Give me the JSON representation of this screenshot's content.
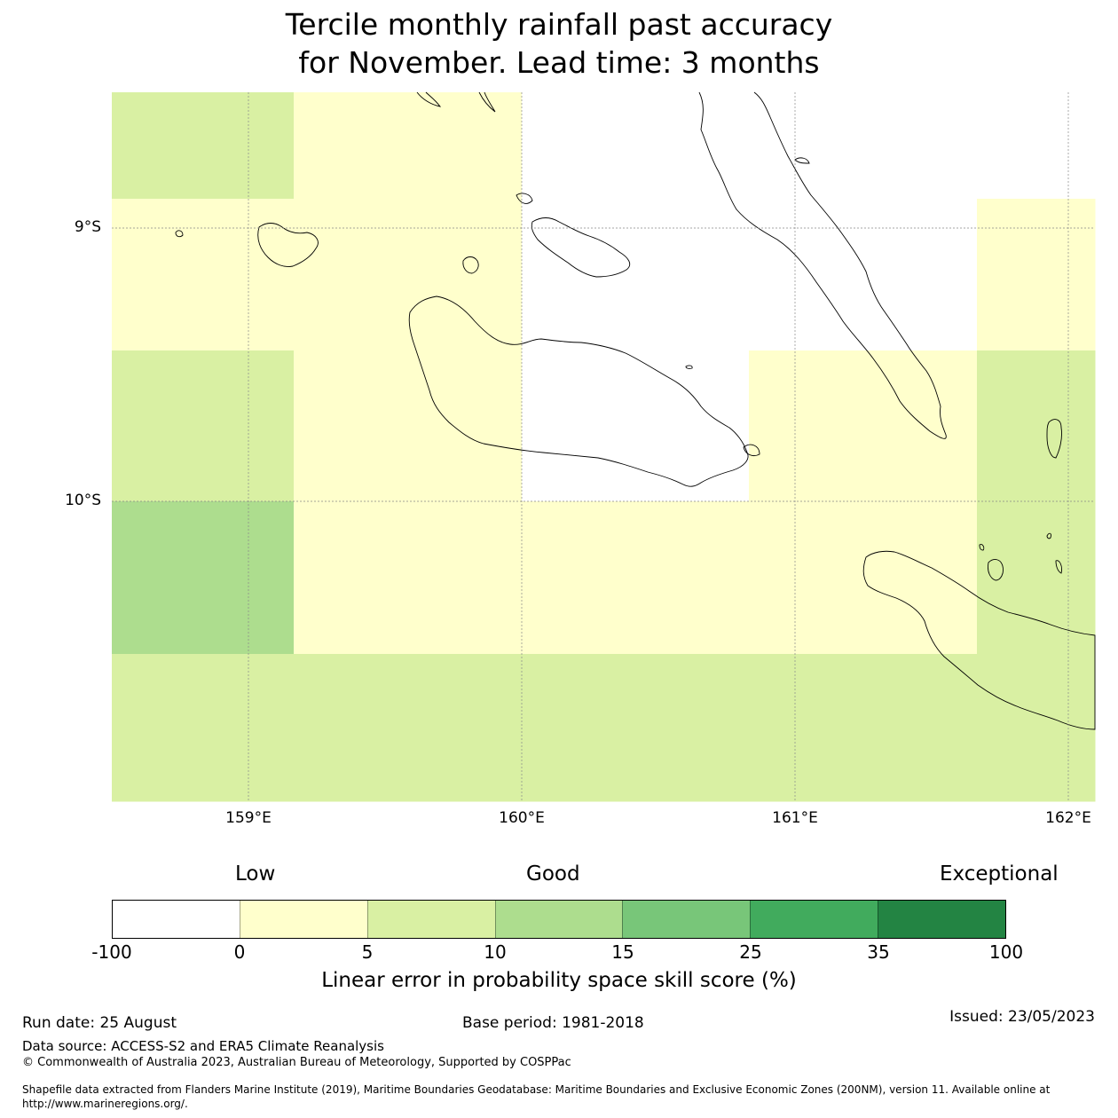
{
  "title": {
    "line1": "Tercile monthly rainfall past accuracy",
    "line2": "for November. Lead time: 3 months"
  },
  "map": {
    "lat_labels": [
      "9°S",
      "10°S"
    ],
    "lon_labels": [
      "159°E",
      "160°E",
      "161°E",
      "162°E"
    ],
    "cells_skill_class": [
      [
        "5-10",
        "0-5",
        "0-5",
        "missing",
        "missing",
        "missing",
        "missing",
        "missing"
      ],
      [
        "0-5",
        "0-5",
        "0-5",
        "missing",
        "missing",
        "missing",
        "missing",
        "0-5"
      ],
      [
        "5-10",
        "0-5",
        "0-5",
        "missing",
        "missing",
        "0-5",
        "0-5",
        "5-10"
      ],
      [
        "10-15",
        "0-5",
        "0-5",
        "0-5",
        "0-5",
        "0-5",
        "0-5",
        "5-10"
      ],
      [
        "5-10",
        "5-10",
        "5-10",
        "5-10",
        "5-10",
        "5-10",
        "5-10",
        "5-10"
      ]
    ]
  },
  "colorbar": {
    "category_labels": {
      "low": "Low",
      "good": "Good",
      "exceptional": "Exceptional"
    },
    "colors": [
      "#ffffff",
      "#ffffcc",
      "#d9f0a3",
      "#addd8e",
      "#78c679",
      "#41ab5d",
      "#238443"
    ],
    "ticks": [
      "-100",
      "0",
      "5",
      "10",
      "15",
      "25",
      "35",
      "100"
    ],
    "label": "Linear error in probability space skill score (%)"
  },
  "footer": {
    "run_date": "Run date: 25 August",
    "base_period": "Base period: 1981-2018",
    "issued": "Issued: 23/05/2023",
    "data_source": "Data source: ACCESS-S2 and ERA5 Climate Reanalysis",
    "copyright": "© Commonwealth of Australia 2023, Australian Bureau of Meteorology, Supported by COSPPac",
    "shapefile_note": "Shapefile data extracted from Flanders Marine Institute (2019), Maritime Boundaries Geodatabase: Maritime Boundaries and Exclusive Economic Zones (200NM), version 11. Available online at http://www.marineregions.org/."
  }
}
